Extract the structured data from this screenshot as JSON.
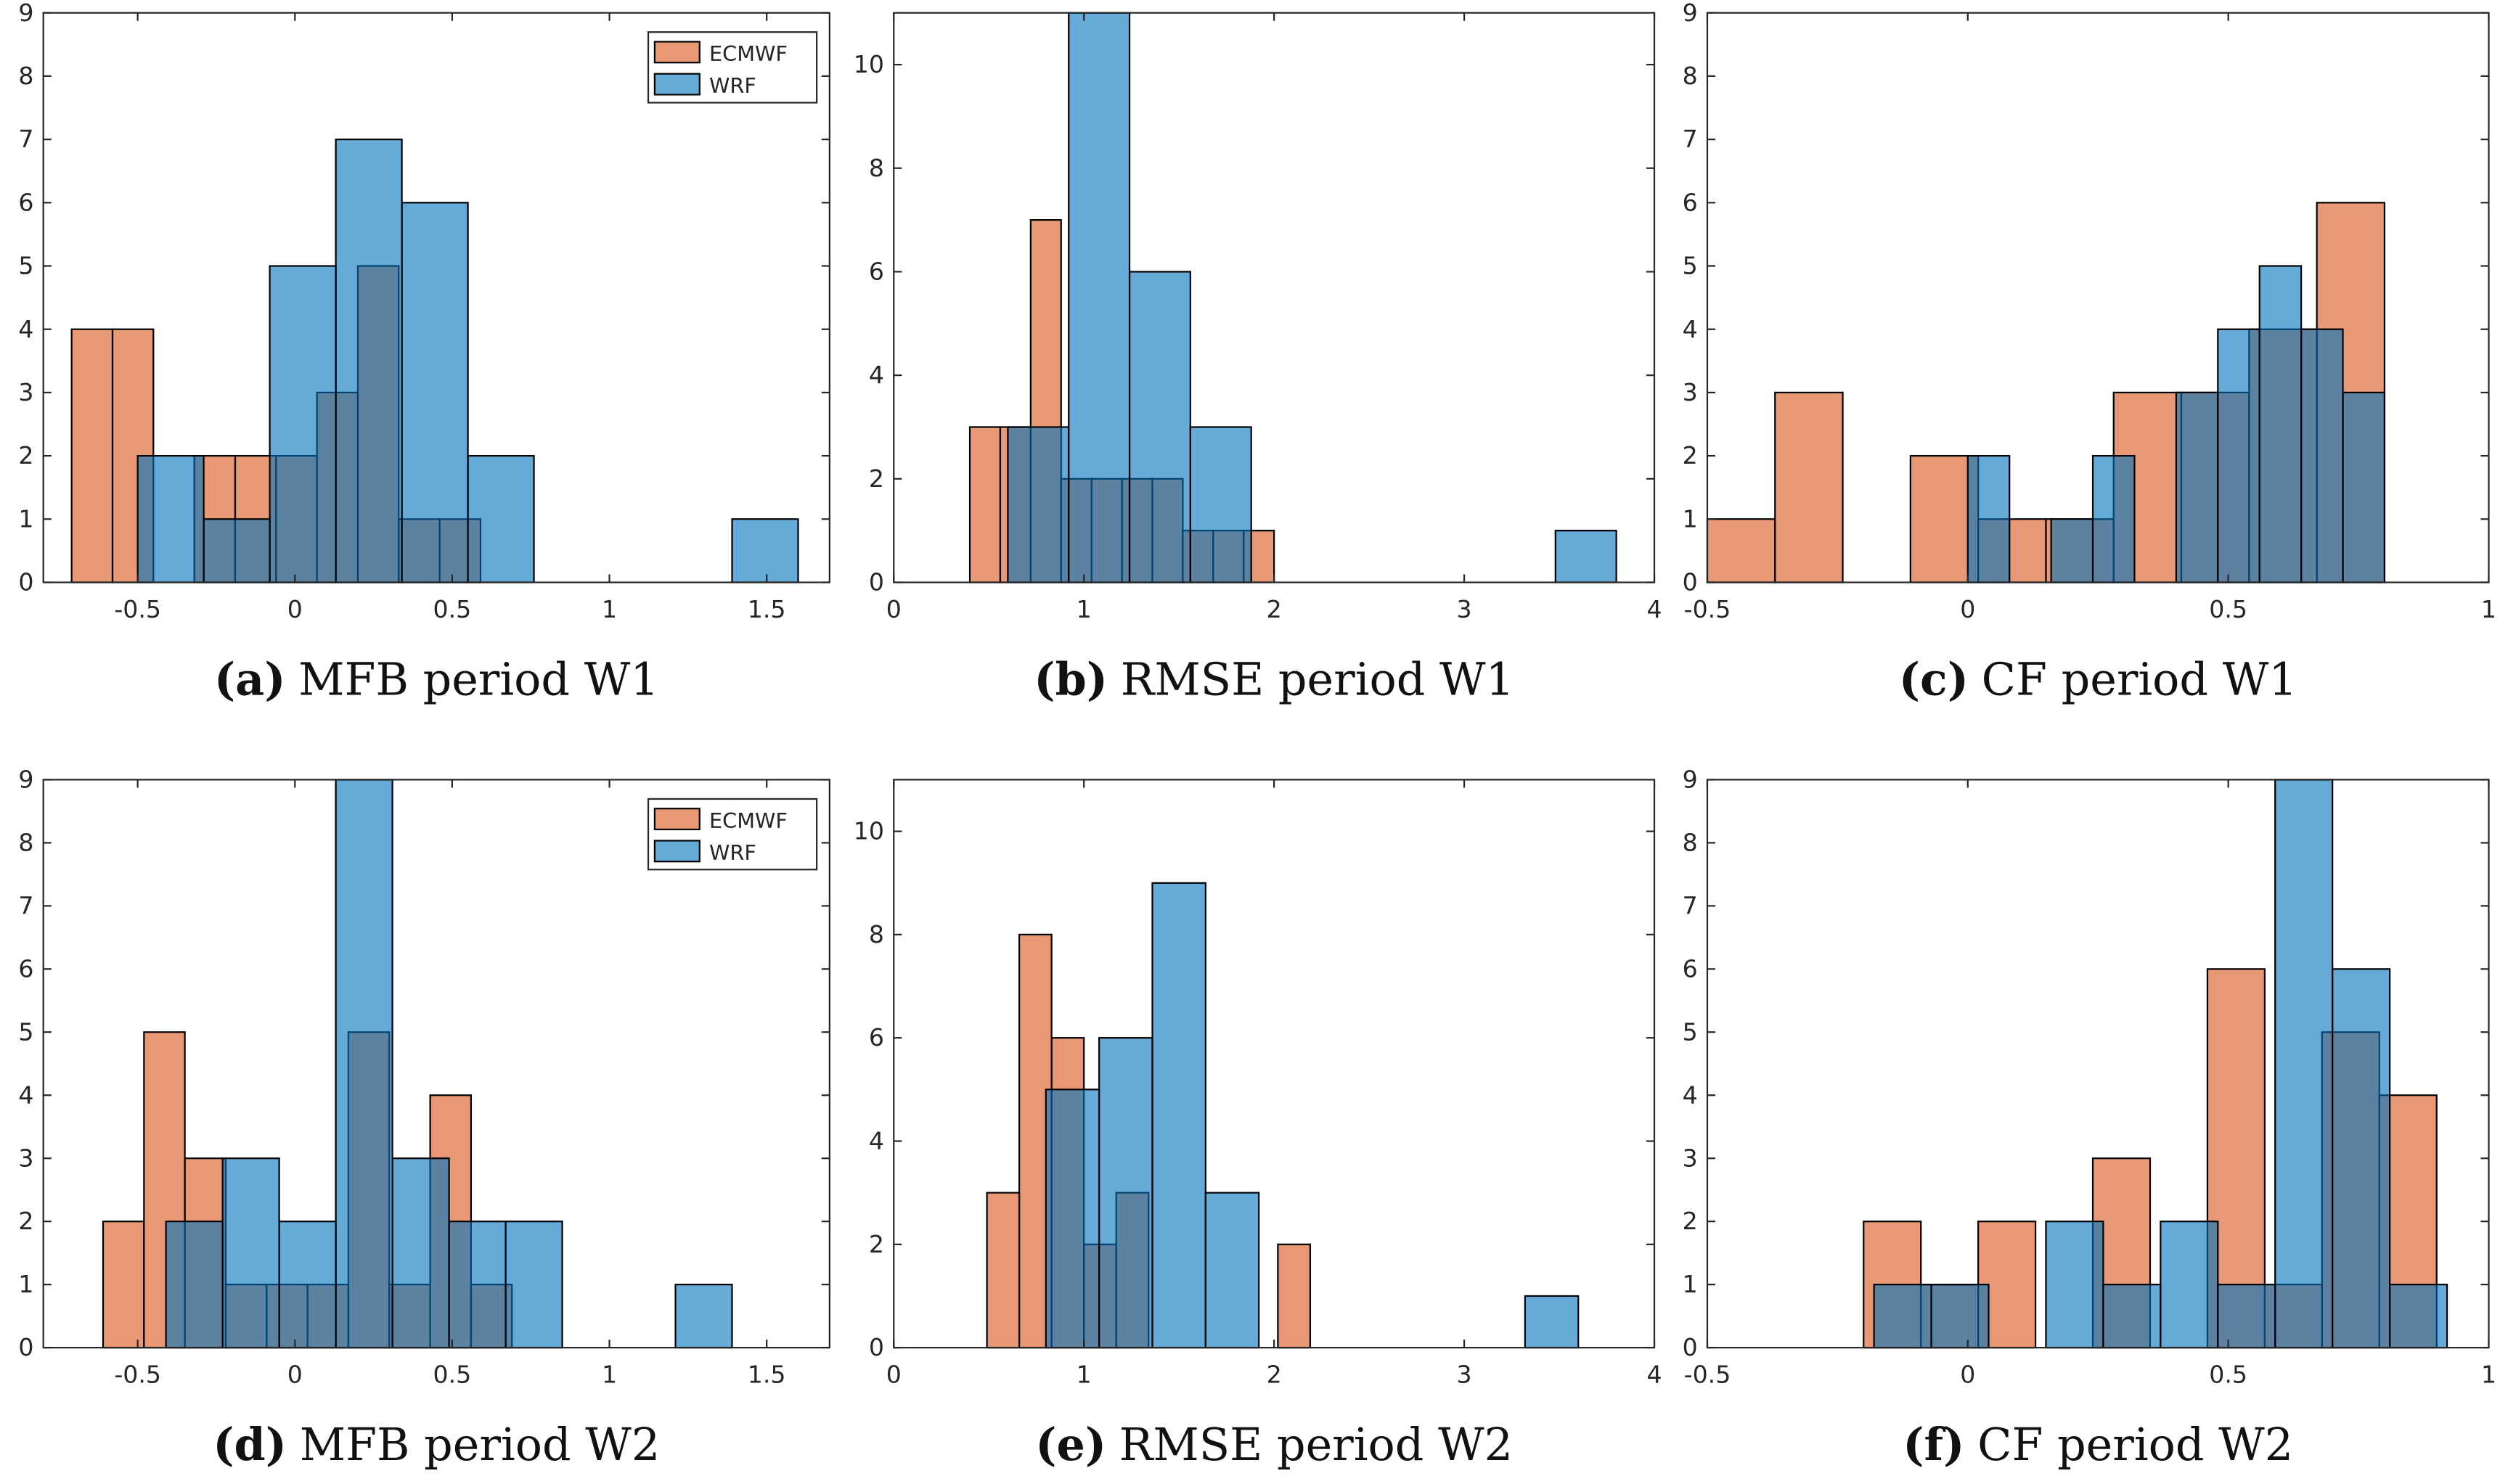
{
  "chart_data": [
    {
      "type": "histogram",
      "caption_label": "(a)",
      "caption": "MFB period W1",
      "xlim": [
        -0.8,
        1.7
      ],
      "ylim": [
        0,
        9
      ],
      "xticks": [
        -0.5,
        0,
        0.5,
        1,
        1.5
      ],
      "yticks": [
        0,
        1,
        2,
        3,
        4,
        5,
        6,
        7,
        8,
        9
      ],
      "legend": "northeast",
      "face_alpha": 0.6,
      "series": [
        {
          "name": "ECMWF",
          "color": "#d95319",
          "bins": [
            -0.71,
            -0.58,
            -0.45,
            -0.32,
            -0.19,
            -0.06,
            0.07,
            0.2,
            0.33,
            0.46,
            0.59
          ],
          "values": [
            4,
            4,
            0,
            2,
            2,
            2,
            3,
            5,
            1,
            1
          ]
        },
        {
          "name": "WRF",
          "color": "#0072bd",
          "bins": [
            -0.5,
            -0.29,
            -0.08,
            0.13,
            0.34,
            0.55,
            0.76,
            0.97,
            1.18,
            1.39,
            1.6
          ],
          "values": [
            2,
            1,
            5,
            7,
            6,
            2,
            0,
            0,
            0,
            1
          ]
        }
      ]
    },
    {
      "type": "histogram",
      "caption_label": "(b)",
      "caption": "RMSE period W1",
      "xlim": [
        0,
        4
      ],
      "ylim": [
        0,
        11
      ],
      "xticks": [
        0,
        1,
        2,
        3,
        4
      ],
      "yticks": [
        0,
        2,
        4,
        6,
        8,
        10
      ],
      "face_alpha": 0.6,
      "series": [
        {
          "name": "ECMWF",
          "color": "#d95319",
          "bins": [
            0.4,
            0.56,
            0.72,
            0.88,
            1.04,
            1.2,
            1.36,
            1.52,
            1.68,
            1.84,
            2.0
          ],
          "values": [
            3,
            3,
            7,
            2,
            2,
            2,
            2,
            1,
            1,
            1
          ]
        },
        {
          "name": "WRF",
          "color": "#0072bd",
          "bins": [
            0.6,
            0.92,
            1.24,
            1.56,
            1.88,
            2.2,
            2.52,
            2.84,
            3.16,
            3.48,
            3.8
          ],
          "values": [
            3,
            11,
            6,
            3,
            0,
            0,
            0,
            0,
            0,
            1
          ]
        }
      ]
    },
    {
      "type": "histogram",
      "caption_label": "(c)",
      "caption": "CF period W1",
      "xlim": [
        -0.5,
        1
      ],
      "ylim": [
        0,
        9
      ],
      "xticks": [
        -0.5,
        0,
        0.5,
        1
      ],
      "yticks": [
        0,
        1,
        2,
        3,
        4,
        5,
        6,
        7,
        8,
        9
      ],
      "face_alpha": 0.6,
      "series": [
        {
          "name": "ECMWF",
          "color": "#d95319",
          "bins": [
            -0.5,
            -0.37,
            -0.24,
            -0.11,
            0.02,
            0.15,
            0.28,
            0.41,
            0.54,
            0.67,
            0.8
          ],
          "values": [
            1,
            3,
            0,
            2,
            1,
            1,
            3,
            3,
            4,
            6
          ]
        },
        {
          "name": "WRF",
          "color": "#0072bd",
          "bins": [
            0.0,
            0.08,
            0.16,
            0.24,
            0.32,
            0.4,
            0.48,
            0.56,
            0.64,
            0.72,
            0.8
          ],
          "values": [
            2,
            0,
            1,
            2,
            0,
            3,
            4,
            5,
            4,
            3
          ]
        }
      ]
    },
    {
      "type": "histogram",
      "caption_label": "(d)",
      "caption": "MFB period W2",
      "xlim": [
        -0.8,
        1.7
      ],
      "ylim": [
        0,
        9
      ],
      "xticks": [
        -0.5,
        0,
        0.5,
        1,
        1.5
      ],
      "yticks": [
        0,
        1,
        2,
        3,
        4,
        5,
        6,
        7,
        8,
        9
      ],
      "legend": "northeast",
      "face_alpha": 0.6,
      "series": [
        {
          "name": "ECMWF",
          "color": "#d95319",
          "bins": [
            -0.61,
            -0.48,
            -0.35,
            -0.22,
            -0.09,
            0.04,
            0.17,
            0.3,
            0.43,
            0.56,
            0.69
          ],
          "values": [
            2,
            5,
            3,
            1,
            1,
            1,
            5,
            1,
            4,
            1
          ]
        },
        {
          "name": "WRF",
          "color": "#0072bd",
          "bins": [
            -0.41,
            -0.23,
            -0.05,
            0.13,
            0.31,
            0.49,
            0.67,
            0.85,
            1.03,
            1.21,
            1.39
          ],
          "values": [
            2,
            3,
            2,
            9,
            3,
            2,
            2,
            0,
            0,
            1
          ]
        }
      ]
    },
    {
      "type": "histogram",
      "caption_label": "(e)",
      "caption": "RMSE period W2",
      "xlim": [
        0,
        4
      ],
      "ylim": [
        0,
        11
      ],
      "xticks": [
        0,
        1,
        2,
        3,
        4
      ],
      "yticks": [
        0,
        2,
        4,
        6,
        8,
        10
      ],
      "face_alpha": 0.6,
      "series": [
        {
          "name": "ECMWF",
          "color": "#d95319",
          "bins": [
            0.49,
            0.66,
            0.83,
            1.0,
            1.17,
            1.34,
            1.51,
            1.68,
            1.85,
            2.02,
            2.19
          ],
          "values": [
            3,
            8,
            6,
            2,
            3,
            0,
            0,
            0,
            0,
            2
          ]
        },
        {
          "name": "WRF",
          "color": "#0072bd",
          "bins": [
            0.8,
            1.08,
            1.36,
            1.64,
            1.92,
            2.2,
            2.48,
            2.76,
            3.04,
            3.32,
            3.6
          ],
          "values": [
            5,
            6,
            9,
            3,
            0,
            0,
            0,
            0,
            0,
            1
          ]
        }
      ]
    },
    {
      "type": "histogram",
      "caption_label": "(f)",
      "caption": "CF period W2",
      "xlim": [
        -0.5,
        1
      ],
      "ylim": [
        0,
        9
      ],
      "xticks": [
        -0.5,
        0,
        0.5,
        1
      ],
      "yticks": [
        0,
        1,
        2,
        3,
        4,
        5,
        6,
        7,
        8,
        9
      ],
      "face_alpha": 0.6,
      "series": [
        {
          "name": "ECMWF",
          "color": "#d95319",
          "bins": [
            -0.2,
            -0.09,
            0.02,
            0.13,
            0.24,
            0.35,
            0.46,
            0.57,
            0.68,
            0.79,
            0.9
          ],
          "values": [
            2,
            1,
            2,
            0,
            3,
            0,
            6,
            1,
            5,
            4
          ]
        },
        {
          "name": "WRF",
          "color": "#0072bd",
          "bins": [
            -0.18,
            -0.07,
            0.04,
            0.15,
            0.26,
            0.37,
            0.48,
            0.59,
            0.7,
            0.81,
            0.92
          ],
          "values": [
            1,
            1,
            0,
            2,
            1,
            2,
            1,
            9,
            6,
            1
          ]
        }
      ]
    }
  ]
}
